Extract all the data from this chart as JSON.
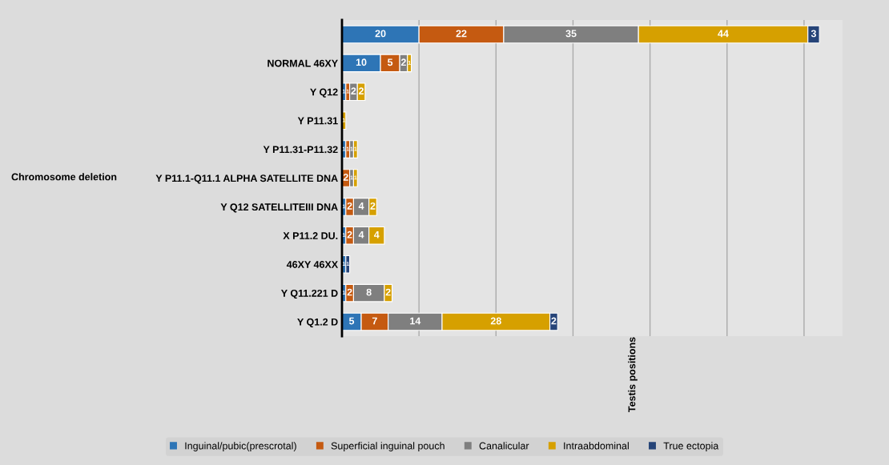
{
  "chart_data": {
    "type": "bar",
    "orientation": "horizontal",
    "stacked": true,
    "categories": [
      null,
      "NORMAL 46XY",
      "Y Q12",
      "Y P11.31",
      "Y P11.31-P11.32",
      "Y P11.1-Q11.1 ALPHA SATELLITE DNA",
      "Y Q12 SATELLITEIII DNA",
      "X P11.2 DU.",
      "46XY 46XX",
      "Y Q11.221 D",
      "Y Q1.2 D"
    ],
    "series": [
      {
        "name": "Inguinal/pubic(prescrotal)",
        "color": "#2e75b6",
        "values": [
          20,
          10,
          1,
          null,
          1,
          null,
          1,
          1,
          1,
          1,
          5
        ]
      },
      {
        "name": "Superficial inguinal pouch",
        "color": "#c55a11",
        "values": [
          22,
          5,
          1,
          null,
          1,
          2,
          2,
          2,
          null,
          2,
          7
        ]
      },
      {
        "name": "Canalicular",
        "color": "#7f7f7f",
        "values": [
          35,
          2,
          2,
          null,
          1,
          1,
          4,
          4,
          null,
          8,
          14
        ]
      },
      {
        "name": "Intraabdominal",
        "color": "#d6a000",
        "values": [
          44,
          1,
          2,
          1,
          1,
          1,
          2,
          4,
          null,
          2,
          28
        ]
      },
      {
        "name": "True ectopia",
        "color": "#264478",
        "values": [
          3,
          null,
          null,
          null,
          null,
          null,
          null,
          null,
          1,
          null,
          2
        ]
      }
    ],
    "ylabel": "Chromosome deletion",
    "annotations": [
      "Testis positions"
    ],
    "xlim": [
      0,
      130
    ],
    "xticks": [
      {
        "value": 0,
        "label": null
      },
      {
        "value": 20,
        "label": null
      },
      {
        "value": 40,
        "label": null
      },
      {
        "value": 60,
        "label": null
      },
      {
        "value": 80,
        "label": null
      },
      {
        "value": 100,
        "label": null
      },
      {
        "value": 120,
        "label": null
      }
    ],
    "grid": "x",
    "legend": "bottom",
    "data_labels": true,
    "tick_labels": "y"
  }
}
